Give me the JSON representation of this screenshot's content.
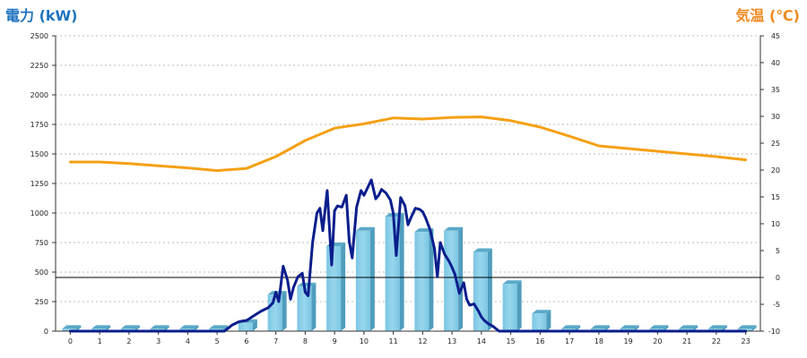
{
  "chart_data": {
    "type": "bar",
    "left_axis": {
      "title": "電力 (kW)",
      "ylim": [
        0,
        2500
      ],
      "ticks": [
        "0",
        "250",
        "500",
        "750",
        "1000",
        "1250",
        "1500",
        "1750",
        "2000",
        "2250",
        "2500"
      ]
    },
    "right_axis": {
      "title": "気温 (℃)",
      "ylim": [
        -10,
        45
      ],
      "ticks": [
        "-10",
        "-5",
        "0",
        "5",
        "10",
        "15",
        "20",
        "25",
        "30",
        "35",
        "40",
        "45"
      ]
    },
    "x_categories": [
      "0",
      "1",
      "2",
      "3",
      "4",
      "5",
      "6",
      "7",
      "8",
      "9",
      "10",
      "11",
      "12",
      "13",
      "14",
      "15",
      "16",
      "17",
      "18",
      "19",
      "20",
      "21",
      "22",
      "23"
    ],
    "grid": true,
    "colors": {
      "bars": "#8ccfe8",
      "power_line": "#0a1e8c",
      "temperature_line": "#f5a014",
      "left_title": "#1e73be",
      "right_title": "#f08a1f",
      "grid": "#bbbbbb"
    },
    "series": [
      {
        "kind": "bar",
        "axis": "left",
        "values": [
          20,
          20,
          20,
          20,
          20,
          20,
          70,
          310,
          380,
          720,
          850,
          970,
          840,
          850,
          670,
          400,
          150,
          20,
          20,
          20,
          20,
          20,
          20,
          20
        ]
      },
      {
        "kind": "line",
        "axis": "left",
        "x": [
          0,
          5.25,
          5.5,
          5.75,
          6,
          6.25,
          6.5,
          6.75,
          6.9,
          7,
          7.1,
          7.25,
          7.4,
          7.5,
          7.6,
          7.75,
          7.9,
          8.0,
          8.1,
          8.25,
          8.4,
          8.5,
          8.6,
          8.75,
          8.9,
          9.0,
          9.1,
          9.25,
          9.4,
          9.5,
          9.6,
          9.75,
          9.9,
          10.0,
          10.1,
          10.25,
          10.4,
          10.5,
          10.6,
          10.75,
          10.9,
          11.0,
          11.1,
          11.25,
          11.4,
          11.5,
          11.6,
          11.75,
          11.9,
          12.0,
          12.1,
          12.25,
          12.4,
          12.5,
          12.6,
          12.75,
          12.9,
          13.0,
          13.1,
          13.25,
          13.4,
          13.5,
          13.6,
          13.75,
          13.9,
          14.0,
          14.1,
          14.25,
          14.4,
          14.5,
          14.6,
          14.75,
          14.9,
          15.0,
          15.1,
          15.25,
          15.4,
          15.5,
          15.6,
          15.75,
          15.9,
          16.0,
          16.1,
          16.25,
          16.4,
          16.5,
          16.6,
          16.75,
          17,
          18,
          19,
          20,
          21,
          22,
          23
        ],
        "y": [
          0,
          0,
          50,
          80,
          90,
          130,
          170,
          200,
          240,
          330,
          250,
          550,
          430,
          270,
          370,
          460,
          490,
          330,
          300,
          750,
          1000,
          1040,
          850,
          1190,
          560,
          1020,
          1060,
          1050,
          1150,
          760,
          620,
          1050,
          1190,
          1150,
          1200,
          1280,
          1120,
          1150,
          1200,
          1170,
          1110,
          1000,
          640,
          1130,
          1060,
          900,
          960,
          1040,
          1030,
          1010,
          960,
          860,
          700,
          460,
          750,
          650,
          590,
          540,
          480,
          320,
          410,
          270,
          220,
          230,
          170,
          120,
          90,
          60,
          40,
          20,
          0,
          0,
          0,
          0,
          0,
          0,
          0,
          0,
          0,
          0,
          0,
          0,
          0,
          0,
          0,
          0,
          0,
          0,
          0,
          0,
          0,
          0,
          0,
          0,
          0
        ]
      },
      {
        "kind": "line",
        "axis": "right",
        "x": [
          0,
          1,
          2,
          3,
          4,
          5,
          6,
          7,
          8,
          9,
          10,
          11,
          12,
          13,
          14,
          15,
          16,
          17,
          18,
          19,
          20,
          21,
          22,
          23
        ],
        "y": [
          21.5,
          21.5,
          21.2,
          20.8,
          20.4,
          19.9,
          20.3,
          22.5,
          25.5,
          27.8,
          28.6,
          29.7,
          29.5,
          29.8,
          29.9,
          29.2,
          28.0,
          26.3,
          24.5,
          24.0,
          23.5,
          23.0,
          22.5,
          21.9
        ]
      }
    ]
  }
}
